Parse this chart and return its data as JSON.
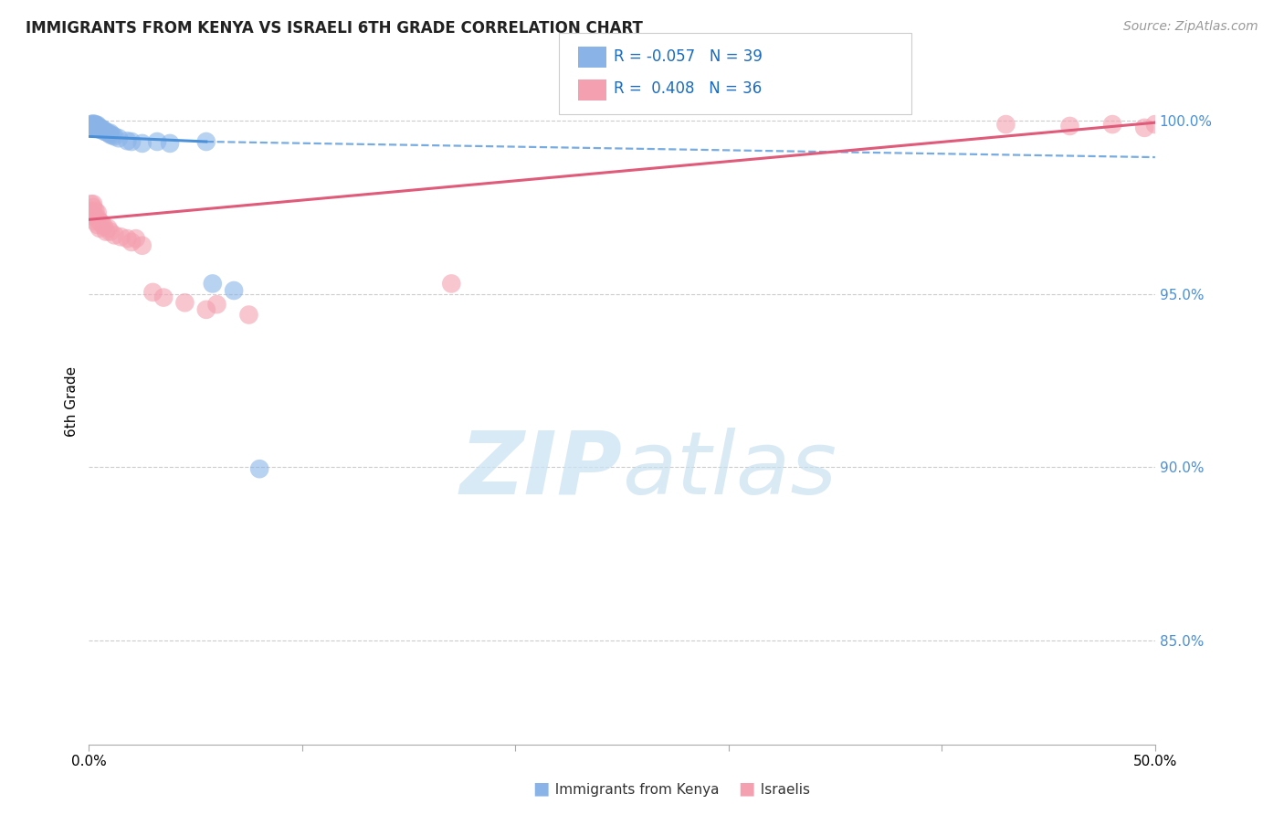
{
  "title": "IMMIGRANTS FROM KENYA VS ISRAELI 6TH GRADE CORRELATION CHART",
  "source": "Source: ZipAtlas.com",
  "ylabel": "6th Grade",
  "ytick_labels": [
    "85.0%",
    "90.0%",
    "95.0%",
    "100.0%"
  ],
  "ytick_values": [
    0.85,
    0.9,
    0.95,
    1.0
  ],
  "xlim": [
    0.0,
    0.5
  ],
  "ylim": [
    0.82,
    1.018
  ],
  "color_blue": "#8ab4e8",
  "color_pink": "#f4a0b0",
  "line_blue": "#4a90d9",
  "line_pink": "#e05a7a",
  "blue_line_x0": 0.0,
  "blue_line_x1": 0.055,
  "blue_line_y0": 0.9955,
  "blue_line_y1": 0.994,
  "dashed_line_x0": 0.055,
  "dashed_line_x1": 0.5,
  "dashed_line_y0": 0.994,
  "dashed_line_y1": 0.9895,
  "pink_line_x0": 0.0,
  "pink_line_x1": 0.5,
  "pink_line_y0": 0.9715,
  "pink_line_y1": 0.9995,
  "kenya_x": [
    0.001,
    0.001,
    0.002,
    0.002,
    0.002,
    0.002,
    0.003,
    0.003,
    0.003,
    0.003,
    0.003,
    0.004,
    0.004,
    0.004,
    0.004,
    0.004,
    0.005,
    0.005,
    0.005,
    0.006,
    0.006,
    0.007,
    0.007,
    0.008,
    0.009,
    0.01,
    0.01,
    0.011,
    0.012,
    0.014,
    0.018,
    0.02,
    0.025,
    0.032,
    0.038,
    0.055,
    0.058,
    0.068,
    0.08
  ],
  "kenya_y": [
    0.9985,
    0.999,
    0.9985,
    0.999,
    0.9988,
    0.9992,
    0.9988,
    0.9982,
    0.9985,
    0.999,
    0.998,
    0.9985,
    0.9988,
    0.9978,
    0.9982,
    0.998,
    0.9978,
    0.9975,
    0.998,
    0.9975,
    0.9978,
    0.997,
    0.9974,
    0.9968,
    0.9965,
    0.996,
    0.9965,
    0.9958,
    0.9955,
    0.995,
    0.9942,
    0.994,
    0.9935,
    0.994,
    0.9935,
    0.994,
    0.953,
    0.951,
    0.8995
  ],
  "israeli_x": [
    0.001,
    0.001,
    0.002,
    0.002,
    0.002,
    0.003,
    0.003,
    0.003,
    0.004,
    0.004,
    0.004,
    0.005,
    0.005,
    0.006,
    0.007,
    0.008,
    0.009,
    0.01,
    0.012,
    0.015,
    0.018,
    0.02,
    0.022,
    0.025,
    0.03,
    0.035,
    0.045,
    0.055,
    0.06,
    0.075,
    0.17,
    0.43,
    0.46,
    0.48,
    0.495,
    0.5
  ],
  "israeli_y": [
    0.976,
    0.974,
    0.975,
    0.973,
    0.976,
    0.972,
    0.974,
    0.971,
    0.972,
    0.97,
    0.9735,
    0.971,
    0.969,
    0.9705,
    0.9695,
    0.968,
    0.969,
    0.968,
    0.967,
    0.9665,
    0.966,
    0.965,
    0.966,
    0.964,
    0.9505,
    0.949,
    0.9475,
    0.9455,
    0.947,
    0.944,
    0.953,
    0.999,
    0.9985,
    0.999,
    0.998,
    0.999
  ]
}
